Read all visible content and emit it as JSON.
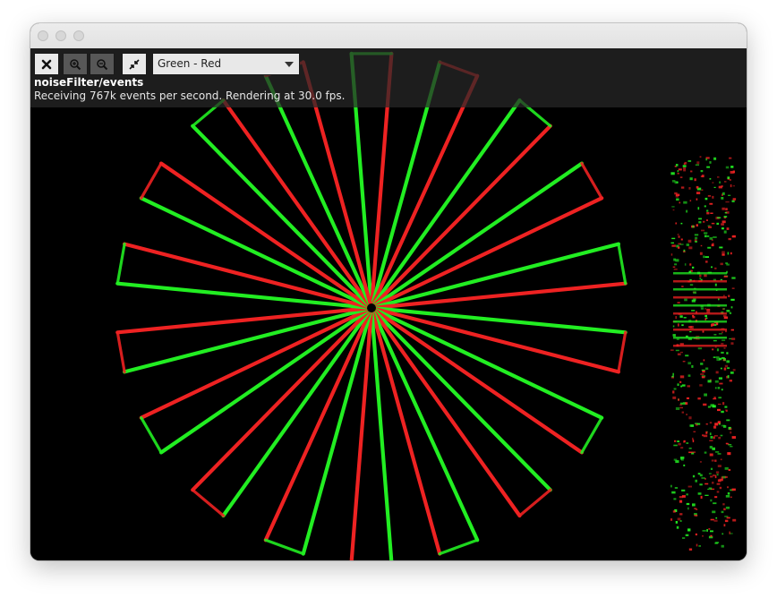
{
  "toolbar": {
    "close_icon": "close-icon",
    "zoom_in_icon": "zoom-in-icon",
    "zoom_out_icon": "zoom-out-icon",
    "fit_icon": "collapse-icon",
    "color_scheme": {
      "selected": "Green - Red"
    }
  },
  "topic": "noiseFilter/events",
  "status": "Receiving 767k events per second. Rendering at 30.0 fps.",
  "colors": {
    "positive": "#22ee22",
    "negative": "#ee2222",
    "background": "#000000"
  }
}
